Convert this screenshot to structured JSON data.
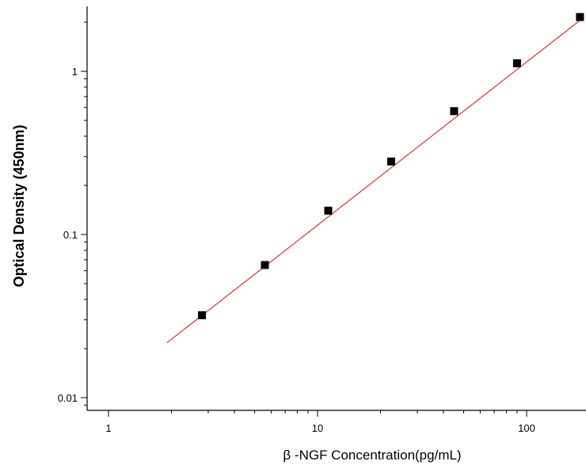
{
  "chart_data": {
    "type": "scatter",
    "title": "",
    "xlabel": "β -NGF  Concentration(pg/mL)",
    "ylabel": "Optical Density (450nm)",
    "xscale": "log",
    "yscale": "log",
    "xlim": [
      0.85,
      180
    ],
    "ylim": [
      0.0075,
      2.7
    ],
    "grid": false,
    "legend": "none",
    "x_ticks": [
      {
        "value": 1,
        "label": "1"
      },
      {
        "value": 10,
        "label": "10"
      },
      {
        "value": 100,
        "label": "100"
      }
    ],
    "y_ticks": [
      {
        "value": 0.01,
        "label": "0.01"
      },
      {
        "value": 0.1,
        "label": "0.1"
      },
      {
        "value": 1,
        "label": "1"
      }
    ],
    "series": [
      {
        "marker": "square",
        "color": "#000000",
        "points": [
          {
            "x": 2.8,
            "y": 0.032
          },
          {
            "x": 5.6,
            "y": 0.065
          },
          {
            "x": 11.25,
            "y": 0.14
          },
          {
            "x": 22.5,
            "y": 0.28
          },
          {
            "x": 45,
            "y": 0.57
          },
          {
            "x": 90,
            "y": 1.12
          },
          {
            "x": 180,
            "y": 2.15
          }
        ]
      }
    ],
    "fit_line": {
      "color": "#e03030",
      "x_range": [
        1.9,
        185
      ],
      "slope_log": 1.0,
      "intercept_log": -1.943
    }
  }
}
